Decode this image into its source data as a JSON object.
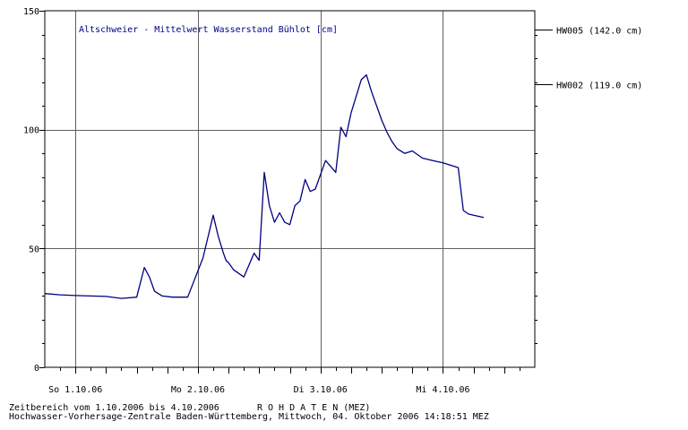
{
  "footer": {
    "line1": "Zeitbereich vom 1.10.2006 bis 4.10.2006       R O H D A T E N (MEZ)",
    "line2": "Hochwasser-Vorhersage-Zentrale Baden-Württemberg, Mittwoch, 04. Oktober 2006 14:18:51 MEZ"
  },
  "colors": {
    "series": "#000080",
    "title": "#00008b",
    "axis": "#000000"
  },
  "chart_data": {
    "type": "line",
    "title": "Altschweier - Mittelwert Wasserstand Bühlot [cm]",
    "xlabel": "",
    "ylabel": "",
    "ylim": [
      0,
      150
    ],
    "xlim": [
      "2006-09-30T18:00",
      "2006-10-04T18:00"
    ],
    "grid": true,
    "y_ticks": [
      {
        "value": 0,
        "label": "0"
      },
      {
        "value": 50,
        "label": "50"
      },
      {
        "value": 100,
        "label": "100"
      },
      {
        "value": 150,
        "label": "150"
      }
    ],
    "x_tick_labels": [
      {
        "x": "2006-10-01T00:00",
        "label": "So 1.10.06"
      },
      {
        "x": "2006-10-02T00:00",
        "label": "Mo 2.10.06"
      },
      {
        "x": "2006-10-03T00:00",
        "label": "Di 3.10.06"
      },
      {
        "x": "2006-10-04T00:00",
        "label": "Mi 4.10.06"
      }
    ],
    "reference_lines": [
      {
        "label": "HW005 (142.0 cm)",
        "value": 142.0
      },
      {
        "label": "HW002 (119.0 cm)",
        "value": 119.0
      }
    ],
    "series": [
      {
        "x": [
          "2006-09-30T18:00",
          "2006-09-30T21:00",
          "2006-10-01T00:00",
          "2006-10-01T03:00",
          "2006-10-01T06:00",
          "2006-10-01T09:00",
          "2006-10-01T12:00",
          "2006-10-01T13:30",
          "2006-10-01T14:30",
          "2006-10-01T15:30",
          "2006-10-01T17:00",
          "2006-10-01T19:00",
          "2006-10-01T22:00",
          "2006-10-02T01:00",
          "2006-10-02T03:00",
          "2006-10-02T04:00",
          "2006-10-02T05:00",
          "2006-10-02T05:30",
          "2006-10-02T06:00",
          "2006-10-02T07:00",
          "2006-10-02T09:00",
          "2006-10-02T11:00",
          "2006-10-02T12:00",
          "2006-10-02T13:00",
          "2006-10-02T14:00",
          "2006-10-02T15:00",
          "2006-10-02T16:00",
          "2006-10-02T17:00",
          "2006-10-02T18:00",
          "2006-10-02T19:00",
          "2006-10-02T20:00",
          "2006-10-02T21:00",
          "2006-10-02T22:00",
          "2006-10-02T23:00",
          "2006-10-03T01:00",
          "2006-10-03T03:00",
          "2006-10-03T04:00",
          "2006-10-03T05:00",
          "2006-10-03T06:00",
          "2006-10-03T08:00",
          "2006-10-03T09:00",
          "2006-10-03T10:00",
          "2006-10-03T11:00",
          "2006-10-03T12:00",
          "2006-10-03T13:00",
          "2006-10-03T14:00",
          "2006-10-03T15:00",
          "2006-10-03T16:30",
          "2006-10-03T18:00",
          "2006-10-03T20:00",
          "2006-10-03T22:00",
          "2006-10-04T00:00",
          "2006-10-04T03:00",
          "2006-10-04T04:00",
          "2006-10-04T05:00",
          "2006-10-04T06:00",
          "2006-10-04T08:00"
        ],
        "values": [
          31,
          30.5,
          30.2,
          30,
          29.8,
          29,
          29.5,
          42,
          38,
          32,
          30,
          29.5,
          29.5,
          46,
          64,
          55,
          48,
          45,
          44,
          41,
          38,
          48,
          45,
          82,
          68,
          61,
          65,
          61,
          60,
          68,
          70,
          79,
          74,
          75,
          87,
          82,
          101,
          97,
          107,
          121,
          123,
          116,
          110,
          104,
          99,
          95,
          92,
          90,
          91,
          88,
          87,
          86,
          84,
          66,
          64.5,
          64,
          63
        ]
      }
    ]
  }
}
